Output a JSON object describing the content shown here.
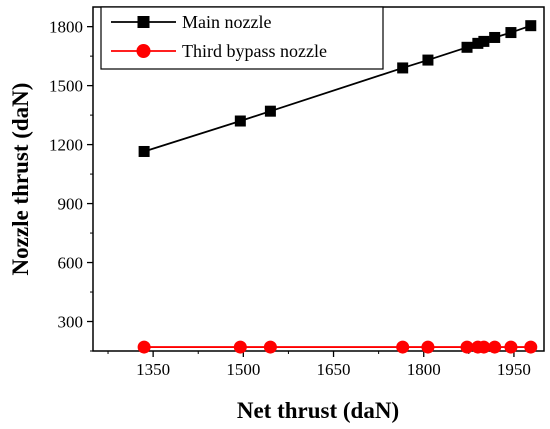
{
  "chart_data": {
    "type": "line",
    "title": "",
    "xlabel": "Net thrust (daN)",
    "ylabel": "Nozzle thrust (daN)",
    "xlim": [
      1250,
      2000
    ],
    "ylim": [
      150,
      1900
    ],
    "xticks": [
      1350,
      1500,
      1650,
      1800,
      1950
    ],
    "yticks": [
      300,
      600,
      900,
      1200,
      1500,
      1800
    ],
    "grid": false,
    "legend_position": "top-right",
    "series": [
      {
        "name": "Main nozzle",
        "color": "#000000",
        "marker": "square",
        "x": [
          1335,
          1495,
          1545,
          1765,
          1807,
          1872,
          1890,
          1900,
          1918,
          1945,
          1978
        ],
        "y": [
          1165,
          1320,
          1370,
          1590,
          1630,
          1695,
          1715,
          1725,
          1745,
          1770,
          1805
        ]
      },
      {
        "name": "Third bypass nozzle",
        "color": "#ff0000",
        "marker": "circle",
        "x": [
          1335,
          1495,
          1545,
          1765,
          1807,
          1872,
          1890,
          1900,
          1918,
          1945,
          1978
        ],
        "y": [
          170,
          170,
          170,
          170,
          170,
          170,
          170,
          170,
          170,
          170,
          170
        ]
      }
    ]
  }
}
